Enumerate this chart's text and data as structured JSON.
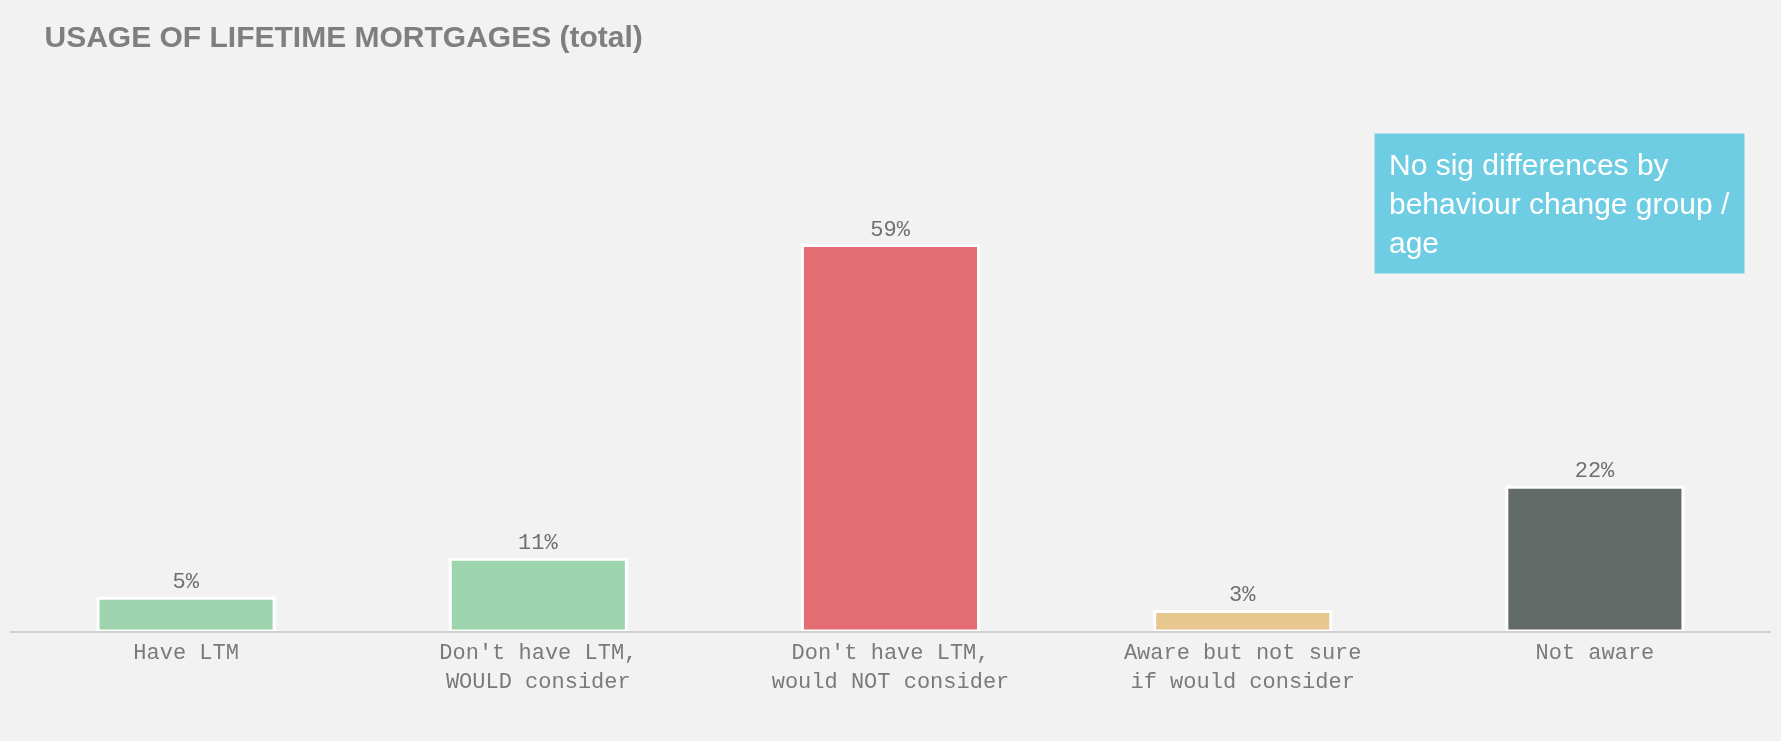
{
  "chart_data": {
    "type": "bar",
    "title": "USAGE OF LIFETIME MORTGAGES (total)",
    "categories": [
      "Have LTM",
      "Don't have LTM, WOULD consider",
      "Don't have LTM, would NOT consider",
      "Aware but not sure if would consider",
      "Not aware"
    ],
    "values": [
      5,
      11,
      59,
      3,
      22
    ],
    "colors": [
      "#9dd4ae",
      "#9dd4ae",
      "#e46d73",
      "#e8c78f",
      "#636b68"
    ],
    "data_labels": true,
    "value_labels": [
      "5%",
      "11%",
      "59%",
      "3%",
      "22%"
    ],
    "annotations": [
      "No sig differences by behaviour change group / age"
    ],
    "grid": false,
    "legend": false
  }
}
